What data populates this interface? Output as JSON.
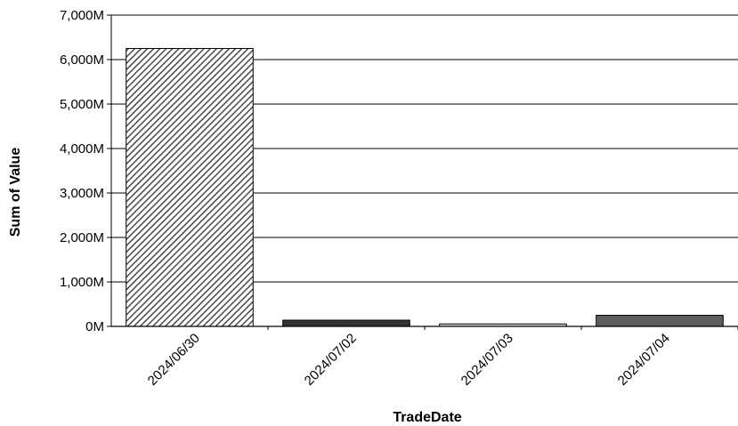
{
  "chart_data": {
    "type": "bar",
    "title": "",
    "xlabel": "TradeDate",
    "ylabel": "Sum of Value",
    "categories": [
      "2024/06/30",
      "2024/07/02",
      "2024/07/03",
      "2024/07/04"
    ],
    "values": [
      6250,
      140,
      55,
      250
    ],
    "value_unit": "M",
    "ylim": [
      0,
      7000
    ],
    "yticks": [
      0,
      1000,
      2000,
      3000,
      4000,
      5000,
      6000,
      7000
    ],
    "ytick_labels": [
      "0M",
      "1,000M",
      "2,000M",
      "3,000M",
      "4,000M",
      "5,000M",
      "6,000M",
      "7,000M"
    ],
    "grid": true,
    "legend": "none",
    "bar_styles": [
      {
        "fill": "hatched",
        "color": "#555555"
      },
      {
        "fill": "solid",
        "color": "#333333"
      },
      {
        "fill": "solid",
        "color": "#d4d4d4"
      },
      {
        "fill": "solid",
        "color": "#5e5e5e"
      }
    ]
  }
}
